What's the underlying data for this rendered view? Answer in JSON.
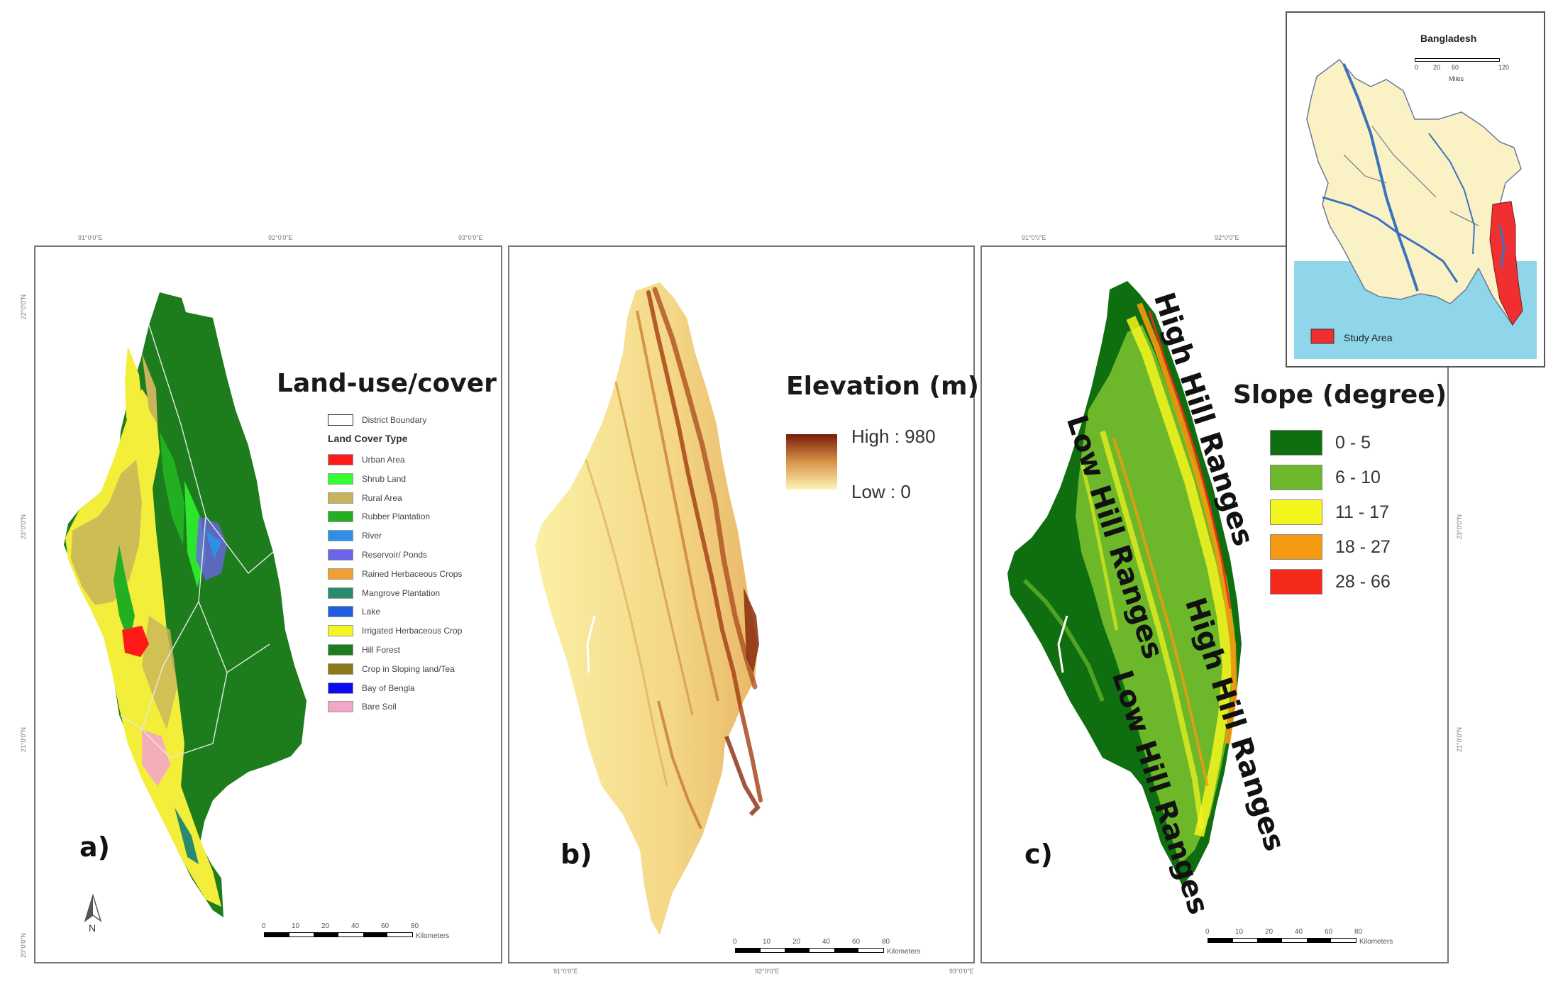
{
  "panel_a": {
    "title": "Land-use/cover",
    "label": "a)",
    "legend_header": "Land Cover Type",
    "boundary_label": "District Boundary",
    "classes": [
      {
        "name": "Urban Area",
        "color": "#ff1a1a"
      },
      {
        "name": "Shrub Land",
        "color": "#33ff33"
      },
      {
        "name": "Rural Area",
        "color": "#c8b45a"
      },
      {
        "name": "Rubber Plantation",
        "color": "#22b022"
      },
      {
        "name": "River",
        "color": "#2f8fe6"
      },
      {
        "name": "Reservoir/ Ponds",
        "color": "#6a64e6"
      },
      {
        "name": "Rained Herbaceous Crops",
        "color": "#f0a030"
      },
      {
        "name": "Mangrove Plantation",
        "color": "#2a8a6e"
      },
      {
        "name": "Lake",
        "color": "#1f5fe0"
      },
      {
        "name": "Irrigated Herbaceous Crop",
        "color": "#f5f522"
      },
      {
        "name": "Hill Forest",
        "color": "#1d7d1d"
      },
      {
        "name": "Crop in Sloping land/Tea",
        "color": "#8a7a1a"
      },
      {
        "name": "Bay of Bengla",
        "color": "#0a0af0"
      },
      {
        "name": "Bare Soil",
        "color": "#f4a6c8"
      }
    ],
    "north": "N",
    "scale_ticks": [
      "0",
      "10",
      "20",
      "40",
      "60",
      "80"
    ],
    "scale_unit": "Kilometers"
  },
  "panel_b": {
    "title": "Elevation (m)",
    "label": "b)",
    "high_label": "High : 980",
    "low_label": "Low : 0",
    "scale_ticks": [
      "0",
      "10",
      "20",
      "40",
      "60",
      "80"
    ],
    "scale_unit": "Kilometers"
  },
  "panel_c": {
    "title": "Slope (degree)",
    "label": "c)",
    "classes": [
      {
        "name": "0 - 5",
        "color": "#0f6e0f"
      },
      {
        "name": "6 - 10",
        "color": "#6cb82a"
      },
      {
        "name": "11 - 17",
        "color": "#f5f51e"
      },
      {
        "name": "18 - 27",
        "color": "#f59a10"
      },
      {
        "name": "28 - 66",
        "color": "#f52a1a"
      }
    ],
    "ranges": [
      "High Hill Ranges",
      "Low Hill Ranges",
      "High Hill Ranges",
      "Low Hill Ranges"
    ],
    "scale_ticks": [
      "0",
      "10",
      "20",
      "40",
      "60",
      "80"
    ],
    "scale_unit": "Kilometers"
  },
  "inset": {
    "title": "Bangladesh",
    "scale_ticks": [
      "0",
      "20",
      "60",
      "120"
    ],
    "scale_unit": "Miles",
    "legend": "Study Area",
    "study_color": "#f03030",
    "land_color": "#faf2c4",
    "water_color": "#8fd6ea"
  },
  "graticule": {
    "top_a": [
      "91°0'0\"E",
      "92°0'0\"E",
      "93°0'0\"E"
    ],
    "left": [
      "22°0'0\"N",
      "23°0'0\"N",
      "21°0'0\"N",
      "20°0'0\"N"
    ]
  }
}
